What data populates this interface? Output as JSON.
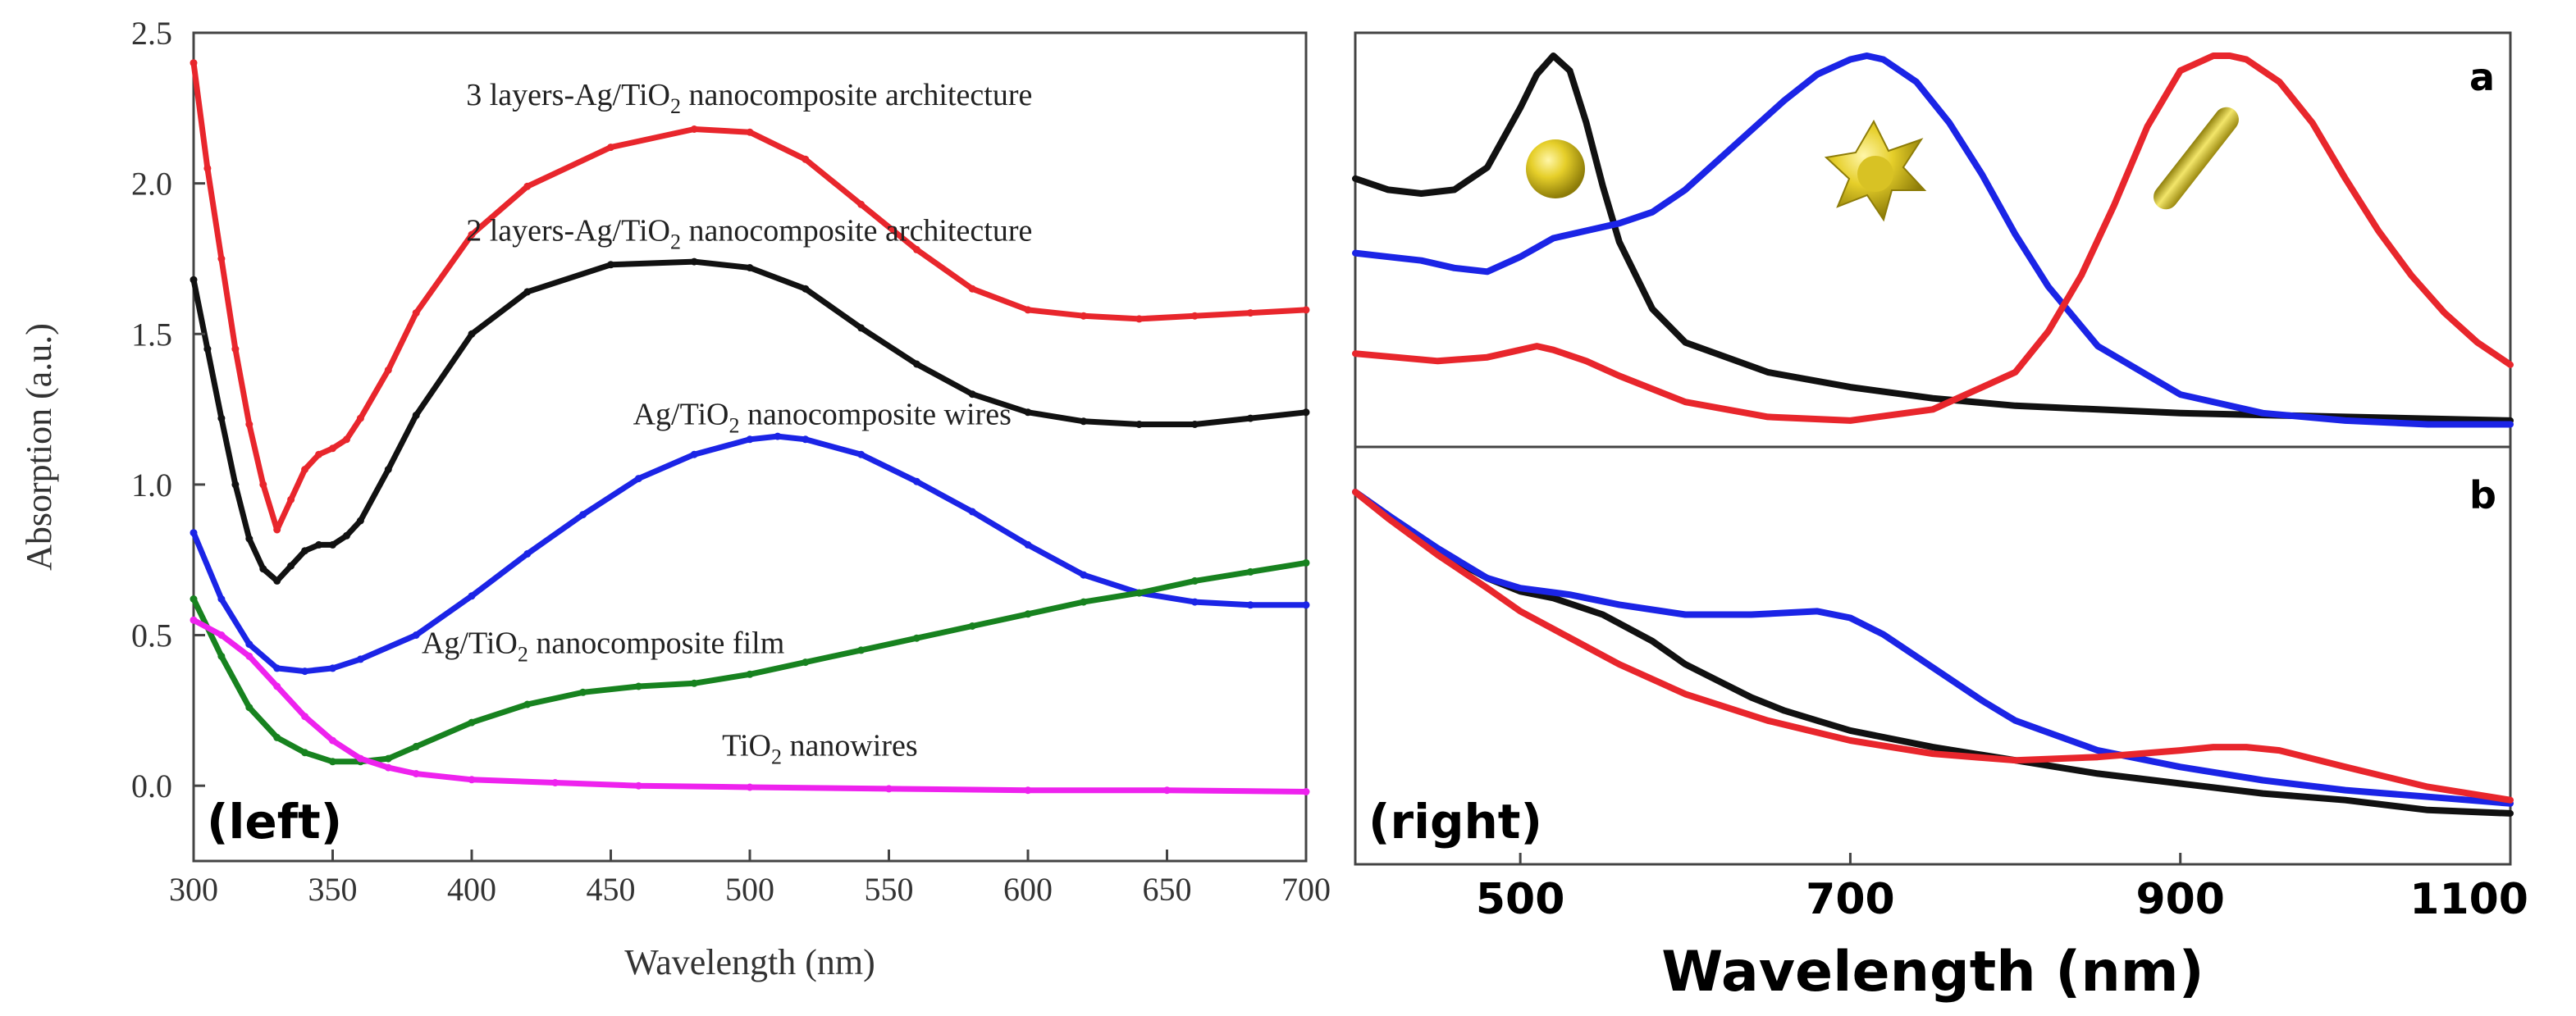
{
  "chart_data": [
    {
      "id": "left",
      "type": "line",
      "panel_label": "(left)",
      "xlabel": "Wavelength (nm)",
      "ylabel": "Absorption (a.u.)",
      "xlim": [
        300,
        700
      ],
      "ylim": [
        -0.25,
        2.5
      ],
      "xticks": [
        "300",
        "350",
        "400",
        "450",
        "500",
        "550",
        "600",
        "650",
        "700"
      ],
      "yticks": [
        "0.0",
        "0.5",
        "1.0",
        "1.5",
        "2.0",
        "2.5"
      ],
      "series": [
        {
          "name": "3 layers-Ag/TiO2 nanocomposite architecture",
          "label_parts": [
            "3 layers-Ag/TiO",
            "2",
            " nanocomposite architecture"
          ],
          "label_at": [
            398,
            2.26
          ],
          "color": "#e8262c",
          "x": [
            300,
            305,
            310,
            315,
            320,
            325,
            330,
            335,
            340,
            345,
            350,
            355,
            360,
            370,
            380,
            400,
            420,
            450,
            480,
            500,
            520,
            540,
            560,
            580,
            600,
            620,
            640,
            660,
            680,
            700
          ],
          "y": [
            2.4,
            2.05,
            1.75,
            1.45,
            1.2,
            1.0,
            0.85,
            0.95,
            1.05,
            1.1,
            1.12,
            1.15,
            1.22,
            1.38,
            1.57,
            1.83,
            1.99,
            2.12,
            2.18,
            2.17,
            2.08,
            1.93,
            1.78,
            1.65,
            1.58,
            1.56,
            1.55,
            1.56,
            1.57,
            1.58
          ]
        },
        {
          "name": "2 layers-Ag/TiO2 nanocomposite architecture",
          "label_parts": [
            "2 layers-Ag/TiO",
            "2",
            " nanocomposite architecture"
          ],
          "label_at": [
            398,
            1.81
          ],
          "color": "#111111",
          "x": [
            300,
            305,
            310,
            315,
            320,
            325,
            330,
            335,
            340,
            345,
            350,
            355,
            360,
            370,
            380,
            400,
            420,
            450,
            480,
            500,
            520,
            540,
            560,
            580,
            600,
            620,
            640,
            660,
            680,
            700
          ],
          "y": [
            1.68,
            1.45,
            1.22,
            1.0,
            0.82,
            0.72,
            0.68,
            0.73,
            0.78,
            0.8,
            0.8,
            0.83,
            0.88,
            1.05,
            1.23,
            1.5,
            1.64,
            1.73,
            1.74,
            1.72,
            1.65,
            1.52,
            1.4,
            1.3,
            1.24,
            1.21,
            1.2,
            1.2,
            1.22,
            1.24
          ]
        },
        {
          "name": "Ag/TiO2 nanocomposite wires",
          "label_parts": [
            "Ag/TiO",
            "2",
            " nanocomposite wires"
          ],
          "label_at": [
            458,
            1.2
          ],
          "color": "#1b24e6",
          "x": [
            300,
            310,
            320,
            330,
            340,
            350,
            360,
            380,
            400,
            420,
            440,
            460,
            480,
            500,
            510,
            520,
            540,
            560,
            580,
            600,
            620,
            640,
            660,
            680,
            700
          ],
          "y": [
            0.84,
            0.62,
            0.47,
            0.39,
            0.38,
            0.39,
            0.42,
            0.5,
            0.63,
            0.77,
            0.9,
            1.02,
            1.1,
            1.15,
            1.16,
            1.15,
            1.1,
            1.01,
            0.91,
            0.8,
            0.7,
            0.64,
            0.61,
            0.6,
            0.6
          ]
        },
        {
          "name": "Ag/TiO2 nanocomposite film",
          "label_parts": [
            "Ag/TiO",
            "2",
            " nanocomposite film"
          ],
          "label_at": [
            382,
            0.44
          ],
          "color": "#17821f",
          "x": [
            300,
            310,
            320,
            330,
            340,
            350,
            360,
            370,
            380,
            400,
            420,
            440,
            460,
            480,
            500,
            520,
            540,
            560,
            580,
            600,
            620,
            640,
            660,
            680,
            700
          ],
          "y": [
            0.62,
            0.43,
            0.26,
            0.16,
            0.11,
            0.08,
            0.08,
            0.09,
            0.13,
            0.21,
            0.27,
            0.31,
            0.33,
            0.34,
            0.37,
            0.41,
            0.45,
            0.49,
            0.53,
            0.57,
            0.61,
            0.64,
            0.68,
            0.71,
            0.74
          ]
        },
        {
          "name": "TiO2 nanowires",
          "label_parts": [
            "TiO",
            "2",
            " nanowires"
          ],
          "label_at": [
            490,
            0.1
          ],
          "color": "#ee22ee",
          "x": [
            300,
            310,
            320,
            330,
            340,
            350,
            360,
            370,
            380,
            400,
            430,
            460,
            500,
            550,
            600,
            650,
            700
          ],
          "y": [
            0.55,
            0.5,
            0.43,
            0.33,
            0.23,
            0.15,
            0.09,
            0.06,
            0.04,
            0.02,
            0.01,
            0.0,
            -0.005,
            -0.01,
            -0.015,
            -0.015,
            -0.02
          ]
        }
      ]
    },
    {
      "id": "right-a",
      "type": "line",
      "panel_label": "a",
      "xlim": [
        400,
        1100
      ],
      "ylim": [
        0,
        1
      ],
      "shape_icons": [
        "sphere-icon",
        "star-icon",
        "rod-icon"
      ],
      "series": [
        {
          "name": "spheres",
          "color": "#111111",
          "x": [
            400,
            420,
            440,
            460,
            480,
            500,
            510,
            520,
            530,
            540,
            550,
            560,
            580,
            600,
            650,
            700,
            750,
            800,
            850,
            900,
            950,
            1000,
            1050,
            1100
          ],
          "y": [
            0.67,
            0.64,
            0.63,
            0.64,
            0.7,
            0.86,
            0.95,
            1.0,
            0.96,
            0.82,
            0.65,
            0.5,
            0.32,
            0.23,
            0.15,
            0.11,
            0.08,
            0.06,
            0.05,
            0.04,
            0.035,
            0.03,
            0.025,
            0.02
          ]
        },
        {
          "name": "stars",
          "color": "#1b24e6",
          "x": [
            400,
            420,
            440,
            460,
            480,
            500,
            520,
            540,
            560,
            580,
            600,
            620,
            640,
            660,
            680,
            700,
            710,
            720,
            740,
            760,
            780,
            800,
            820,
            850,
            900,
            950,
            1000,
            1050,
            1100
          ],
          "y": [
            0.47,
            0.46,
            0.45,
            0.43,
            0.42,
            0.46,
            0.51,
            0.53,
            0.55,
            0.58,
            0.64,
            0.72,
            0.8,
            0.88,
            0.95,
            0.99,
            1.0,
            0.99,
            0.93,
            0.82,
            0.68,
            0.52,
            0.38,
            0.22,
            0.09,
            0.04,
            0.02,
            0.01,
            0.01
          ]
        },
        {
          "name": "rods",
          "color": "#e8262c",
          "x": [
            400,
            450,
            480,
            500,
            510,
            520,
            540,
            560,
            600,
            650,
            700,
            750,
            800,
            820,
            840,
            860,
            880,
            900,
            920,
            930,
            940,
            960,
            980,
            1000,
            1020,
            1040,
            1060,
            1080,
            1100
          ],
          "y": [
            0.2,
            0.18,
            0.19,
            0.21,
            0.22,
            0.21,
            0.18,
            0.14,
            0.07,
            0.03,
            0.02,
            0.05,
            0.15,
            0.26,
            0.41,
            0.6,
            0.81,
            0.96,
            1.0,
            1.0,
            0.99,
            0.93,
            0.82,
            0.67,
            0.53,
            0.41,
            0.31,
            0.23,
            0.17
          ]
        }
      ]
    },
    {
      "id": "right-b",
      "type": "line",
      "panel_label": "b",
      "panel_footer": "(right)",
      "xlabel": "Wavelength (nm)",
      "xlim": [
        400,
        1100
      ],
      "ylim": [
        0,
        1
      ],
      "xticks": [
        "500",
        "700",
        "900",
        "1100"
      ],
      "series": [
        {
          "name": "spheres",
          "color": "#111111",
          "x": [
            400,
            420,
            450,
            480,
            500,
            520,
            550,
            580,
            600,
            620,
            640,
            660,
            680,
            700,
            750,
            800,
            850,
            900,
            950,
            1000,
            1050,
            1100
          ],
          "y": [
            1.0,
            0.93,
            0.82,
            0.74,
            0.7,
            0.68,
            0.63,
            0.55,
            0.48,
            0.43,
            0.38,
            0.34,
            0.31,
            0.28,
            0.23,
            0.19,
            0.15,
            0.12,
            0.09,
            0.07,
            0.04,
            0.03
          ]
        },
        {
          "name": "stars",
          "color": "#1b24e6",
          "x": [
            400,
            420,
            450,
            480,
            500,
            530,
            560,
            600,
            640,
            680,
            700,
            720,
            750,
            780,
            800,
            850,
            900,
            950,
            1000,
            1050,
            1100
          ],
          "y": [
            1.0,
            0.93,
            0.83,
            0.74,
            0.71,
            0.69,
            0.66,
            0.63,
            0.63,
            0.64,
            0.62,
            0.57,
            0.47,
            0.37,
            0.31,
            0.22,
            0.17,
            0.13,
            0.1,
            0.08,
            0.06
          ]
        },
        {
          "name": "rods",
          "color": "#e8262c",
          "x": [
            400,
            420,
            450,
            480,
            500,
            530,
            560,
            600,
            650,
            700,
            750,
            800,
            850,
            900,
            920,
            940,
            960,
            1000,
            1050,
            1100
          ],
          "y": [
            1.0,
            0.92,
            0.81,
            0.71,
            0.64,
            0.56,
            0.48,
            0.39,
            0.31,
            0.25,
            0.21,
            0.19,
            0.2,
            0.22,
            0.23,
            0.23,
            0.22,
            0.17,
            0.11,
            0.07
          ]
        }
      ]
    }
  ]
}
